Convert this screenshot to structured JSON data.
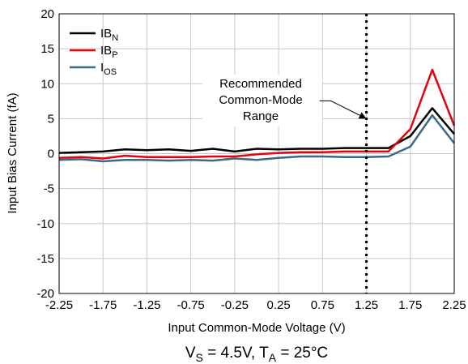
{
  "chart_data": {
    "type": "line",
    "xlabel": "Input Common-Mode Voltage (V)",
    "ylabel": "Input Bias Current (fA)",
    "xlim": [
      -2.25,
      2.25
    ],
    "ylim": [
      -20,
      20
    ],
    "x_ticks": [
      "-2.25",
      "-1.75",
      "-1.25",
      "-0.75",
      "-0.25",
      "0.25",
      "0.75",
      "1.25",
      "1.75",
      "2.25"
    ],
    "y_ticks": [
      "20",
      "15",
      "10",
      "5",
      "0",
      "-5",
      "-10",
      "-15",
      "-20"
    ],
    "grid": true,
    "legend_position": "top-left",
    "series": [
      {
        "name": "IB_N",
        "label": {
          "main": "IB",
          "sub": "N"
        },
        "color": "#000000",
        "x": [
          -2.25,
          -2.0,
          -1.75,
          -1.5,
          -1.25,
          -1.0,
          -0.75,
          -0.5,
          -0.25,
          0.0,
          0.25,
          0.5,
          0.75,
          1.0,
          1.25,
          1.5,
          1.75,
          2.0,
          2.25
        ],
        "y": [
          0.1,
          0.2,
          0.3,
          0.6,
          0.5,
          0.6,
          0.4,
          0.7,
          0.3,
          0.7,
          0.6,
          0.7,
          0.7,
          0.8,
          0.8,
          0.8,
          2.5,
          6.5,
          2.8
        ]
      },
      {
        "name": "IB_P",
        "label": {
          "main": "IB",
          "sub": "P"
        },
        "color": "#e8000b",
        "x": [
          -2.25,
          -2.0,
          -1.75,
          -1.5,
          -1.25,
          -1.0,
          -0.75,
          -0.5,
          -0.25,
          0.0,
          0.25,
          0.5,
          0.75,
          1.0,
          1.25,
          1.5,
          1.75,
          2.0,
          2.25
        ],
        "y": [
          -0.6,
          -0.5,
          -0.7,
          -0.3,
          -0.5,
          -0.5,
          -0.5,
          -0.4,
          -0.4,
          -0.1,
          0.1,
          0.2,
          0.2,
          0.3,
          0.3,
          0.3,
          3.5,
          12.0,
          4.0
        ]
      },
      {
        "name": "I_OS",
        "label": {
          "main": "I",
          "sub": "OS"
        },
        "color": "#3a6a85",
        "x": [
          -2.25,
          -2.0,
          -1.75,
          -1.5,
          -1.25,
          -1.0,
          -0.75,
          -0.5,
          -0.25,
          0.0,
          0.25,
          0.5,
          0.75,
          1.0,
          1.25,
          1.5,
          1.75,
          2.0,
          2.25
        ],
        "y": [
          -0.9,
          -0.8,
          -1.1,
          -0.9,
          -0.9,
          -1.0,
          -0.9,
          -1.0,
          -0.7,
          -0.9,
          -0.6,
          -0.4,
          -0.4,
          -0.5,
          -0.5,
          -0.4,
          1.0,
          5.5,
          1.5
        ]
      }
    ],
    "marker_line": {
      "x": 1.25,
      "style": "dotted"
    },
    "annotation": {
      "lines": [
        "Recommended",
        "Common-Mode",
        "Range"
      ],
      "arrow_target": {
        "x": 1.25,
        "y": 5
      }
    },
    "caption": {
      "v_main": "V",
      "v_sub": "S",
      "v_rest": " = 4.5V, ",
      "t_main": "T",
      "t_sub": "A",
      "t_rest": " = 25°C"
    }
  }
}
